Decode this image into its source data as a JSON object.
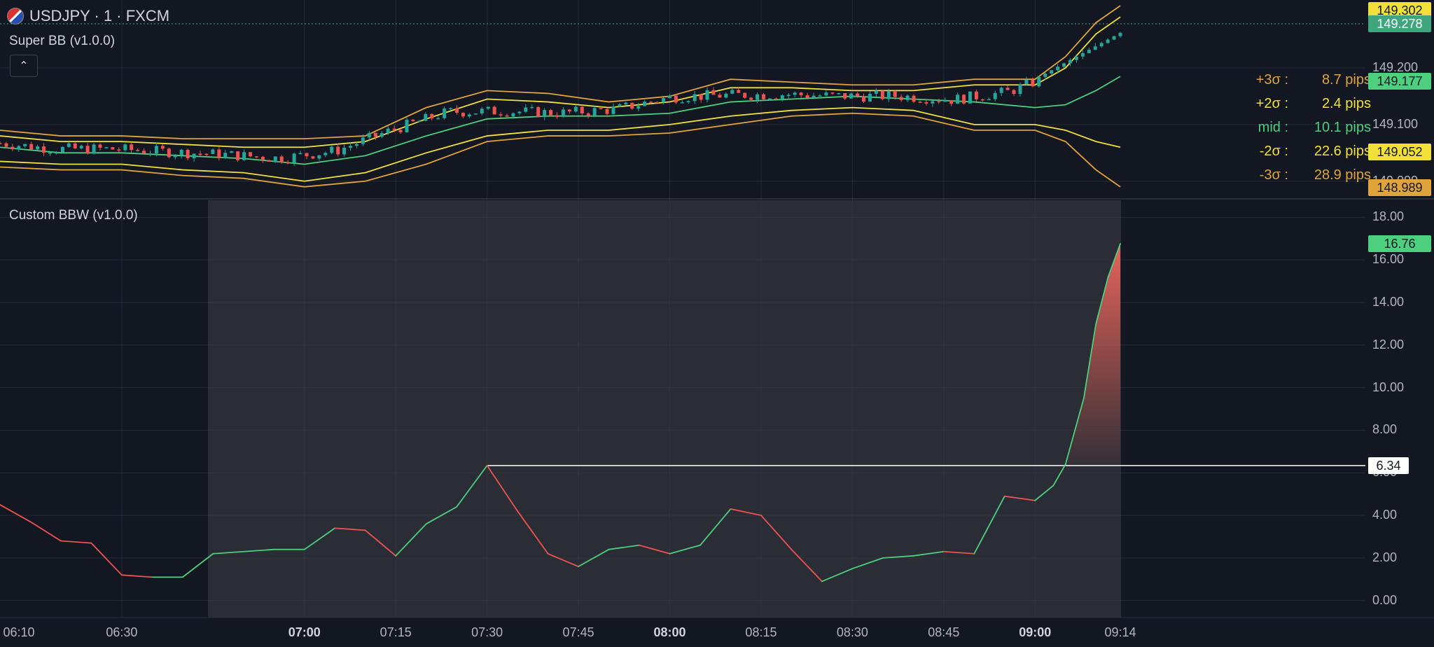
{
  "header": {
    "symbol_title": "USDJPY · 1 · FXCM",
    "indicator1_title": "Super BB (v1.0.0)",
    "indicator2_title": "Custom BBW (v1.0.0)",
    "collapse_icon": "chevron-up-icon"
  },
  "stats": [
    {
      "label": "+3σ :",
      "value": "8.7 pips",
      "color": "#e0a43a"
    },
    {
      "label": "+2σ :",
      "value": "2.4 pips",
      "color": "#f2e03a"
    },
    {
      "label": "mid :",
      "value": "10.1 pips",
      "color": "#4cd07d"
    },
    {
      "label": "-2σ :",
      "value": "22.6 pips",
      "color": "#f2e03a"
    },
    {
      "label": "-3σ :",
      "value": "28.9 pips",
      "color": "#e0a43a"
    }
  ],
  "price_axis": {
    "tick_labels": [
      "149.200",
      "149.100",
      "149.000"
    ],
    "badges": [
      {
        "text": "149.302",
        "color": "#f2e03a"
      },
      {
        "text": "149.278",
        "color": "#3fa57d"
      },
      {
        "text": "149.177",
        "color": "#4cd07d"
      },
      {
        "text": "149.052",
        "color": "#f2e03a"
      },
      {
        "text": "148.989",
        "color": "#e0a43a"
      }
    ]
  },
  "bbw_axis": {
    "tick_labels": [
      "18.00",
      "16.00",
      "14.00",
      "12.00",
      "10.00",
      "8.00",
      "6.00",
      "4.00",
      "2.00",
      "0.00"
    ],
    "current_badge": {
      "text": "16.76",
      "color": "#4cd07d"
    },
    "line_badge": {
      "text": "6.34",
      "color": "#ffffff"
    }
  },
  "time_axis": [
    {
      "text": "06:10",
      "bold": false
    },
    {
      "text": "06:30",
      "bold": false
    },
    {
      "text": "07:00",
      "bold": true
    },
    {
      "text": "07:15",
      "bold": false
    },
    {
      "text": "07:30",
      "bold": false
    },
    {
      "text": "07:45",
      "bold": false
    },
    {
      "text": "08:00",
      "bold": true
    },
    {
      "text": "08:15",
      "bold": false
    },
    {
      "text": "08:30",
      "bold": false
    },
    {
      "text": "08:45",
      "bold": false
    },
    {
      "text": "09:00",
      "bold": true
    },
    {
      "text": "09:14",
      "bold": false
    }
  ],
  "chart_data": [
    {
      "type": "line",
      "series": [
        {
          "name": "+3σ",
          "color": "#e0a43a"
        },
        {
          "name": "+2σ",
          "color": "#f2e03a"
        },
        {
          "name": "mid",
          "color": "#4cd07d"
        },
        {
          "name": "-2σ",
          "color": "#f2e03a"
        },
        {
          "name": "-3σ",
          "color": "#e0a43a"
        }
      ],
      "x": [
        "06:10",
        "06:20",
        "06:30",
        "06:40",
        "06:50",
        "07:00",
        "07:10",
        "07:20",
        "07:30",
        "07:40",
        "07:50",
        "08:00",
        "08:10",
        "08:20",
        "08:30",
        "08:40",
        "08:50",
        "09:00",
        "09:05",
        "09:10",
        "09:14"
      ],
      "upper3": [
        149.09,
        149.08,
        149.08,
        149.075,
        149.075,
        149.075,
        149.08,
        149.13,
        149.16,
        149.155,
        149.14,
        149.15,
        149.18,
        149.175,
        149.17,
        149.17,
        149.18,
        149.18,
        149.22,
        149.28,
        149.31
      ],
      "upper2": [
        149.08,
        149.07,
        149.07,
        149.065,
        149.06,
        149.06,
        149.07,
        149.11,
        149.145,
        149.14,
        149.13,
        149.14,
        149.165,
        149.165,
        149.16,
        149.16,
        149.17,
        149.17,
        149.2,
        149.26,
        149.29
      ],
      "mid": [
        149.06,
        149.05,
        149.05,
        149.045,
        149.04,
        149.03,
        149.045,
        149.08,
        149.11,
        149.115,
        149.115,
        149.12,
        149.14,
        149.145,
        149.15,
        149.145,
        149.14,
        149.13,
        149.135,
        149.16,
        149.185
      ],
      "lower2": [
        149.035,
        149.03,
        149.03,
        149.02,
        149.015,
        149.0,
        149.015,
        149.05,
        149.08,
        149.09,
        149.09,
        149.1,
        149.115,
        149.125,
        149.13,
        149.125,
        149.1,
        149.1,
        149.09,
        149.07,
        149.06
      ],
      "lower3": [
        149.025,
        149.02,
        149.02,
        149.01,
        149.005,
        148.99,
        149.0,
        149.03,
        149.07,
        149.08,
        149.08,
        149.085,
        149.1,
        149.115,
        149.12,
        149.115,
        149.09,
        149.09,
        149.07,
        149.02,
        148.99
      ],
      "ylim": [
        148.97,
        149.32
      ]
    },
    {
      "type": "area",
      "series": [
        {
          "name": "BBW",
          "color_up": "#4cd07d",
          "color_down": "#ef5350"
        }
      ],
      "x": [
        "06:10",
        "06:15",
        "06:20",
        "06:25",
        "06:30",
        "06:35",
        "06:40",
        "06:45",
        "06:50",
        "06:55",
        "07:00",
        "07:05",
        "07:10",
        "07:15",
        "07:20",
        "07:25",
        "07:30",
        "07:35",
        "07:40",
        "07:45",
        "07:50",
        "07:55",
        "08:00",
        "08:05",
        "08:10",
        "08:15",
        "08:20",
        "08:25",
        "08:30",
        "08:35",
        "08:40",
        "08:45",
        "08:50",
        "08:55",
        "09:00",
        "09:03",
        "09:05",
        "09:08",
        "09:10",
        "09:12",
        "09:14"
      ],
      "values": [
        4.5,
        3.7,
        2.8,
        2.7,
        1.2,
        1.1,
        1.1,
        2.2,
        2.3,
        2.4,
        2.4,
        3.4,
        3.3,
        2.1,
        3.6,
        4.4,
        6.34,
        4.2,
        2.2,
        1.6,
        2.4,
        2.6,
        2.2,
        2.6,
        4.3,
        4.0,
        2.4,
        0.9,
        1.5,
        2.0,
        2.1,
        2.3,
        2.2,
        4.9,
        4.7,
        5.4,
        6.4,
        9.5,
        13.0,
        15.2,
        16.76
      ],
      "ylim": [
        -0.8,
        18.8
      ]
    }
  ]
}
